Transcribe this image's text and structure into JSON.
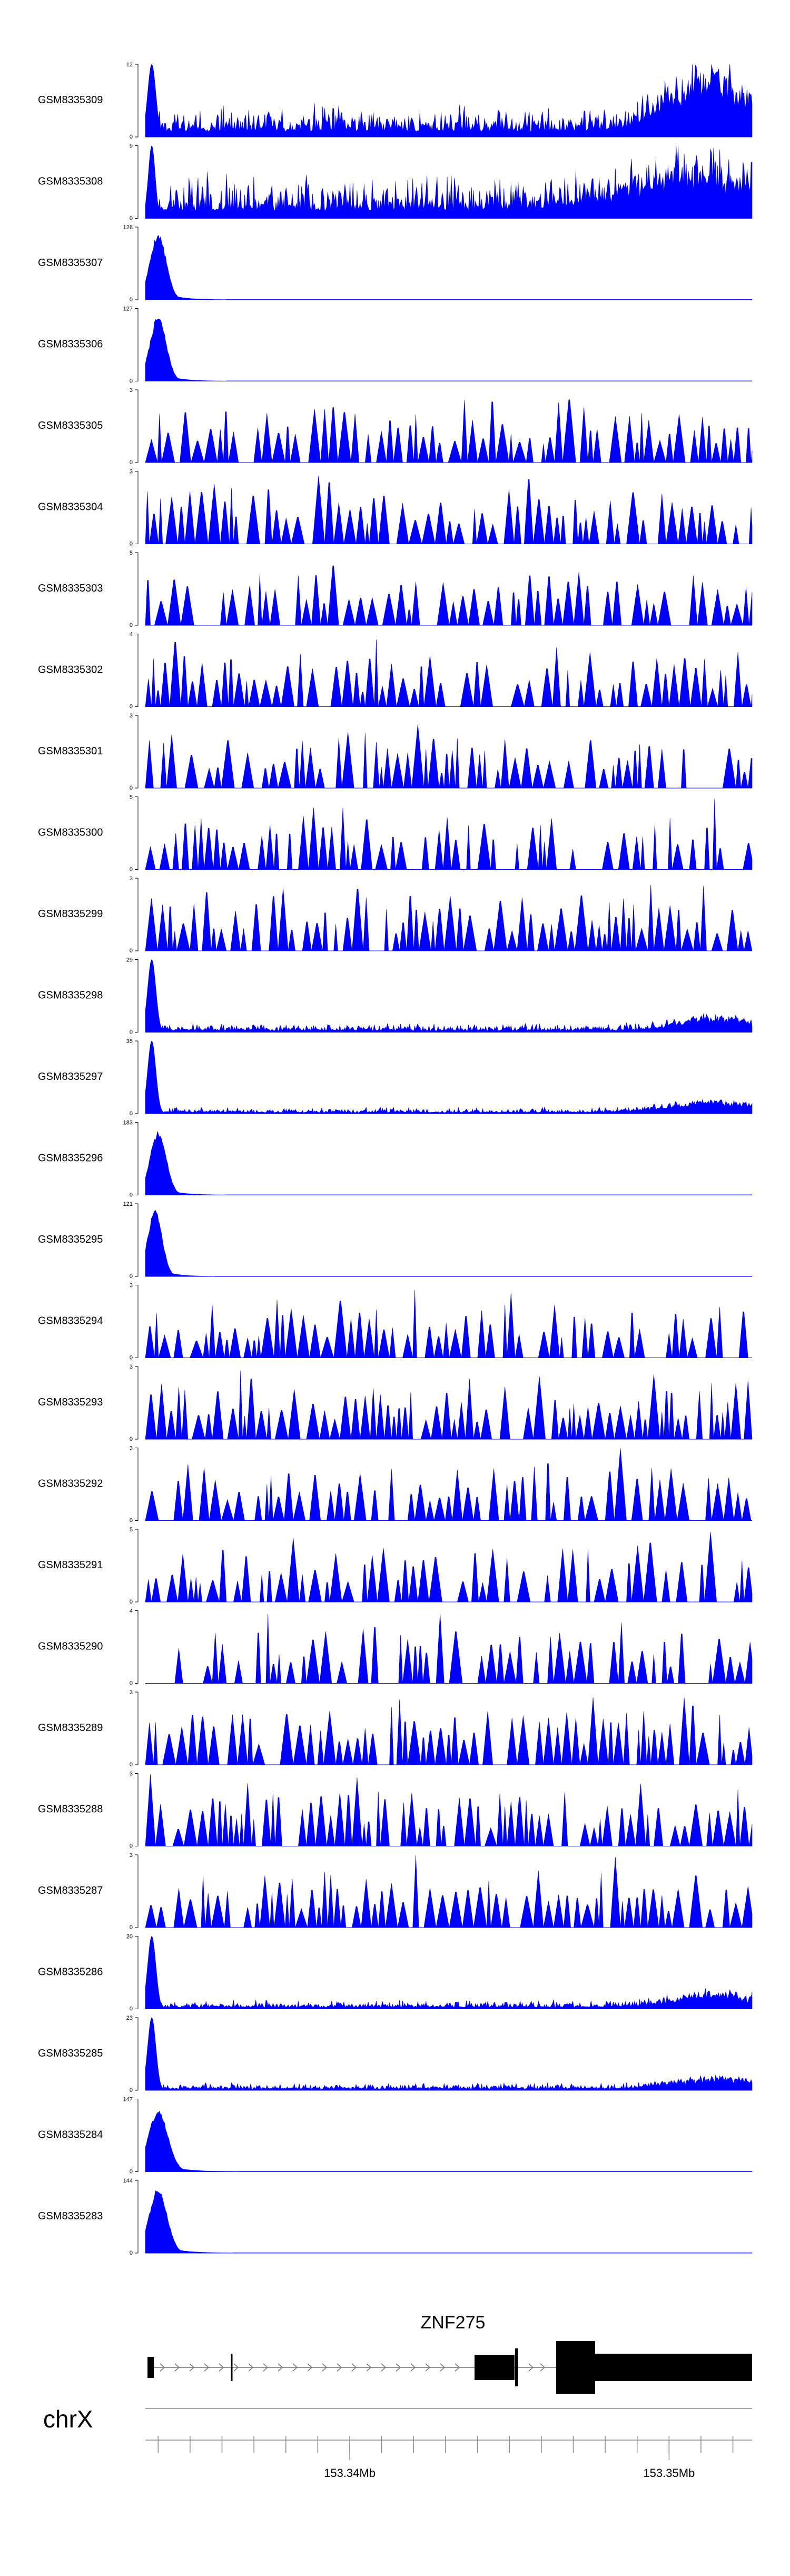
{
  "chart_data": {
    "type": "area",
    "chromosome": "chrX",
    "x_range_mb": [
      153.3336,
      153.3526
    ],
    "ticks": {
      "major_labels": [
        "153.34Mb",
        "153.35Mb"
      ],
      "major_values": [
        153.34,
        153.35
      ]
    },
    "gene": {
      "name": "ZNF275",
      "strand": "+",
      "start_mb": 153.3337,
      "end_mb": 153.3526
    },
    "color": "#0000ff",
    "tracks": [
      {
        "name": "GSM8335309",
        "ymin": 0,
        "ymax": 12,
        "ymax_label": "12",
        "ymin_label": "0",
        "profile": "bg",
        "level": 0.25,
        "spike_mb": 153.3338,
        "spike_frac": 1.0,
        "spike_width": 0.00018,
        "hump_mb": 153.3513,
        "hump_frac": 0.75,
        "hump_width": 0.0018,
        "seed": 11
      },
      {
        "name": "GSM8335308",
        "ymin": 0,
        "ymax": 9,
        "ymax_label": "9",
        "ymin_label": "0",
        "profile": "bg",
        "level": 0.35,
        "spike_mb": 153.3338,
        "spike_frac": 1.0,
        "spike_width": 0.00015,
        "hump_mb": 153.3508,
        "hump_frac": 0.45,
        "hump_width": 0.003,
        "seed": 23
      },
      {
        "name": "GSM8335307",
        "ymin": 0,
        "ymax": 128,
        "ymax_label": "128",
        "ymin_label": "0",
        "profile": "peak",
        "peak_mb": 153.334,
        "peak_frac": 0.92,
        "width_mb": 0.00045,
        "seed": 5
      },
      {
        "name": "GSM8335306",
        "ymin": 0,
        "ymax": 127,
        "ymax_label": "127",
        "ymin_label": "0",
        "profile": "peak",
        "peak_mb": 153.334,
        "peak_frac": 0.9,
        "width_mb": 0.00045,
        "seed": 7
      },
      {
        "name": "GSM8335305",
        "ymin": 0,
        "ymax": 3,
        "ymax_label": "3",
        "ymin_label": "0",
        "profile": "sparse",
        "density": 0.75,
        "seed": 31
      },
      {
        "name": "GSM8335304",
        "ymin": 0,
        "ymax": 3,
        "ymax_label": "3",
        "ymin_label": "0",
        "profile": "sparse",
        "density": 0.7,
        "seed": 37
      },
      {
        "name": "GSM8335303",
        "ymin": 0,
        "ymax": 5,
        "ymax_label": "5",
        "ymin_label": "0",
        "profile": "sparse",
        "density": 0.55,
        "seed": 41
      },
      {
        "name": "GSM8335302",
        "ymin": 0,
        "ymax": 4,
        "ymax_label": "4",
        "ymin_label": "0",
        "profile": "sparse",
        "density": 0.7,
        "seed": 43
      },
      {
        "name": "GSM8335301",
        "ymin": 0,
        "ymax": 3,
        "ymax_label": "3",
        "ymin_label": "0",
        "profile": "sparse",
        "density": 0.65,
        "seed": 47
      },
      {
        "name": "GSM8335300",
        "ymin": 0,
        "ymax": 5,
        "ymax_label": "5",
        "ymin_label": "0",
        "profile": "sparse",
        "density": 0.55,
        "seed": 53
      },
      {
        "name": "GSM8335299",
        "ymin": 0,
        "ymax": 3,
        "ymax_label": "3",
        "ymin_label": "0",
        "profile": "sparse",
        "density": 0.8,
        "seed": 59
      },
      {
        "name": "GSM8335298",
        "ymin": 0,
        "ymax": 29,
        "ymax_label": "29",
        "ymin_label": "0",
        "profile": "bg",
        "level": 0.07,
        "spike_mb": 153.3338,
        "spike_frac": 1.0,
        "spike_width": 0.00018,
        "hump_mb": 153.3515,
        "hump_frac": 0.2,
        "hump_width": 0.0015,
        "seed": 61
      },
      {
        "name": "GSM8335297",
        "ymin": 0,
        "ymax": 35,
        "ymax_label": "35",
        "ymin_label": "0",
        "profile": "bg",
        "level": 0.05,
        "spike_mb": 153.3338,
        "spike_frac": 1.0,
        "spike_width": 0.00018,
        "hump_mb": 153.3515,
        "hump_frac": 0.15,
        "hump_width": 0.002,
        "seed": 67
      },
      {
        "name": "GSM8335296",
        "ymin": 0,
        "ymax": 183,
        "ymax_label": "183",
        "ymin_label": "0",
        "profile": "peak",
        "peak_mb": 153.334,
        "peak_frac": 0.88,
        "width_mb": 0.00045,
        "seed": 71
      },
      {
        "name": "GSM8335295",
        "ymin": 0,
        "ymax": 121,
        "ymax_label": "121",
        "ymin_label": "0",
        "profile": "peak",
        "peak_mb": 153.3339,
        "peak_frac": 0.92,
        "width_mb": 0.0004,
        "seed": 73
      },
      {
        "name": "GSM8335294",
        "ymin": 0,
        "ymax": 3,
        "ymax_label": "3",
        "ymin_label": "0",
        "profile": "sparse",
        "density": 0.7,
        "seed": 79
      },
      {
        "name": "GSM8335293",
        "ymin": 0,
        "ymax": 3,
        "ymax_label": "3",
        "ymin_label": "0",
        "profile": "sparse",
        "density": 0.75,
        "seed": 83
      },
      {
        "name": "GSM8335292",
        "ymin": 0,
        "ymax": 3,
        "ymax_label": "3",
        "ymin_label": "0",
        "profile": "sparse",
        "density": 0.65,
        "seed": 89
      },
      {
        "name": "GSM8335291",
        "ymin": 0,
        "ymax": 5,
        "ymax_label": "5",
        "ymin_label": "0",
        "profile": "sparse",
        "density": 0.7,
        "seed": 97
      },
      {
        "name": "GSM8335290",
        "ymin": 0,
        "ymax": 4,
        "ymax_label": "4",
        "ymin_label": "0",
        "profile": "sparse",
        "density": 0.6,
        "start_mb": 153.3345,
        "seed": 101
      },
      {
        "name": "GSM8335289",
        "ymin": 0,
        "ymax": 3,
        "ymax_label": "3",
        "ymin_label": "0",
        "profile": "sparse",
        "density": 0.85,
        "seed": 103
      },
      {
        "name": "GSM8335288",
        "ymin": 0,
        "ymax": 3,
        "ymax_label": "3",
        "ymin_label": "0",
        "profile": "sparse",
        "density": 0.8,
        "seed": 107
      },
      {
        "name": "GSM8335287",
        "ymin": 0,
        "ymax": 3,
        "ymax_label": "3",
        "ymin_label": "0",
        "profile": "sparse",
        "density": 0.9,
        "seed": 109
      },
      {
        "name": "GSM8335286",
        "ymin": 0,
        "ymax": 20,
        "ymax_label": "20",
        "ymin_label": "0",
        "profile": "bg",
        "level": 0.07,
        "spike_mb": 153.3338,
        "spike_frac": 1.0,
        "spike_width": 0.00018,
        "hump_mb": 153.3515,
        "hump_frac": 0.18,
        "hump_width": 0.0018,
        "seed": 113
      },
      {
        "name": "GSM8335285",
        "ymin": 0,
        "ymax": 23,
        "ymax_label": "23",
        "ymin_label": "0",
        "profile": "bg",
        "level": 0.06,
        "spike_mb": 153.3338,
        "spike_frac": 1.0,
        "spike_width": 0.00018,
        "hump_mb": 153.3515,
        "hump_frac": 0.15,
        "hump_width": 0.0018,
        "seed": 127
      },
      {
        "name": "GSM8335284",
        "ymin": 0,
        "ymax": 147,
        "ymax_label": "147",
        "ymin_label": "0",
        "profile": "peak",
        "peak_mb": 153.334,
        "peak_frac": 0.85,
        "width_mb": 0.00055,
        "seed": 131
      },
      {
        "name": "GSM8335283",
        "ymin": 0,
        "ymax": 144,
        "ymax_label": "144",
        "ymin_label": "0",
        "profile": "peak",
        "peak_mb": 153.334,
        "peak_frac": 0.9,
        "width_mb": 0.0005,
        "seed": 137
      }
    ]
  }
}
